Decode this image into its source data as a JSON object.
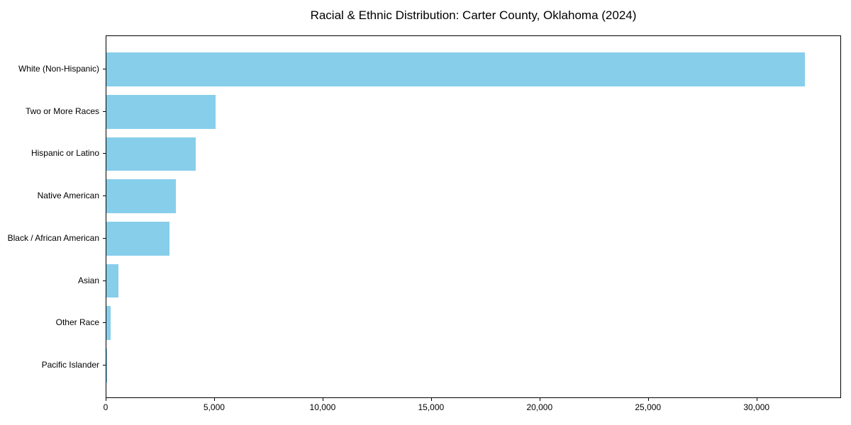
{
  "title": "Racial & Ethnic Distribution: Carter County, Oklahoma (2024)",
  "chart_data": {
    "type": "bar",
    "orientation": "horizontal",
    "title": "Racial & Ethnic Distribution: Carter County, Oklahoma (2024)",
    "xlabel": "",
    "ylabel": "",
    "categories": [
      "White (Non-Hispanic)",
      "Two or More Races",
      "Hispanic or Latino",
      "Native American",
      "Black / African American",
      "Asian",
      "Other Race",
      "Pacific Islander"
    ],
    "values": [
      32250,
      5040,
      4120,
      3210,
      2910,
      550,
      190,
      20
    ],
    "xlim": [
      0,
      33900
    ],
    "x_ticks": [
      0,
      5000,
      10000,
      15000,
      20000,
      25000,
      30000
    ],
    "x_tick_labels": [
      "0",
      "5,000",
      "10,000",
      "15,000",
      "20,000",
      "25,000",
      "30,000"
    ],
    "bar_color": "#87CEEB",
    "grid": false,
    "legend": null
  }
}
